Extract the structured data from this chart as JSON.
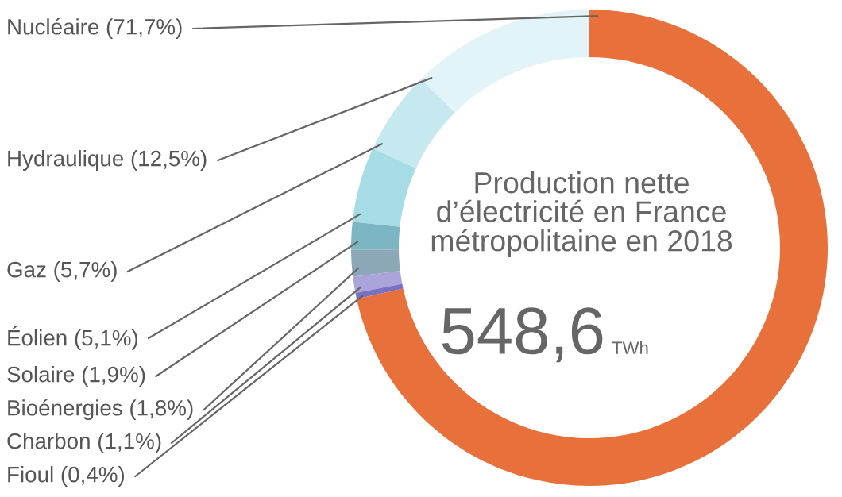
{
  "chart_data": {
    "type": "donut",
    "title": "Production nette d’électricité en France métropolitaine en 2018",
    "categories": [
      "Nucléaire",
      "Hydraulique",
      "Gaz",
      "Éolien",
      "Solaire",
      "Bioénergies",
      "Charbon",
      "Fioul"
    ],
    "values": [
      71.7,
      12.5,
      5.7,
      5.1,
      1.9,
      1.8,
      1.1,
      0.4
    ],
    "value_labels": [
      "(71,7%)",
      "(12,5%)",
      "(5,7%)",
      "(5,1%)",
      "(1,9%)",
      "(1,8%)",
      "(1,1%)",
      "(0,4%)"
    ],
    "colors": [
      "#e8703a",
      "#e2f4f7",
      "#c6e9f0",
      "#a6dce6",
      "#7db6c3",
      "#8ba7b8",
      "#aaa4da",
      "#7b70c2"
    ],
    "annotations": [
      "548,6",
      "TWh"
    ],
    "legend": false
  }
}
